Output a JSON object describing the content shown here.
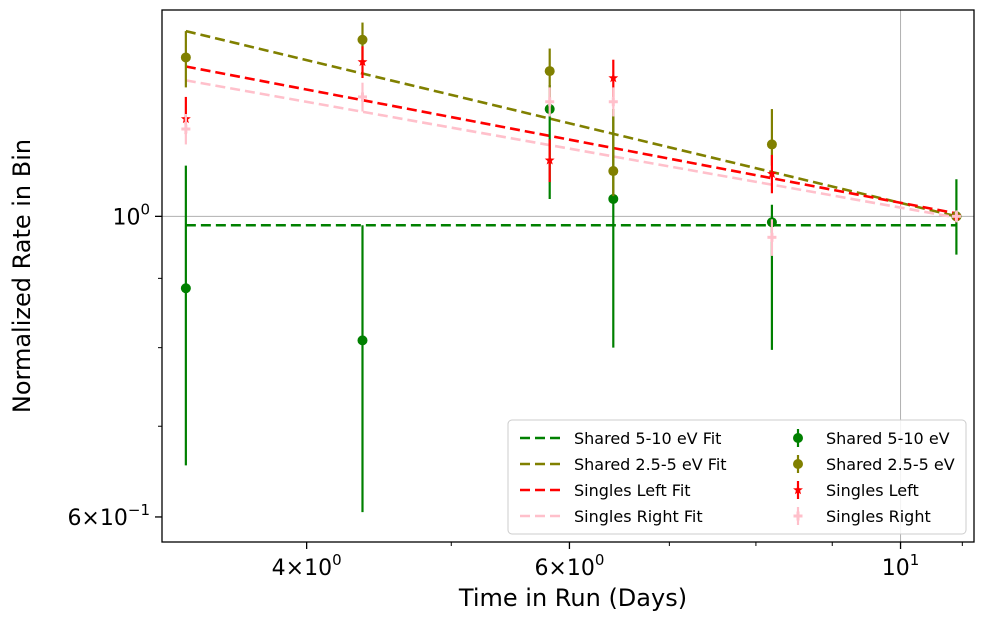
{
  "chart_data": {
    "type": "scatter",
    "title": "",
    "xlabel": "Time in Run (Days)",
    "ylabel": "Normalized Rate in Bin",
    "xscale": "log",
    "yscale": "log",
    "xlim": [
      3.2,
      11.2
    ],
    "ylim": [
      0.575,
      1.42
    ],
    "xticks": [
      {
        "value": 4,
        "base": "4×10",
        "exp": "0"
      },
      {
        "value": 6,
        "base": "6×10",
        "exp": "0"
      },
      {
        "value": 10,
        "base": "10",
        "exp": "1"
      }
    ],
    "yticks": [
      {
        "value": 0.6,
        "base": "6×10",
        "exp": "−1"
      },
      {
        "value": 1.0,
        "base": "10",
        "exp": "0"
      }
    ],
    "grid_lines": {
      "x": 10,
      "y": 1.0
    },
    "legend_position": "lower-right",
    "fits": [
      {
        "name": "Shared 5-10 eV Fit",
        "color": "#008000",
        "x": [
          3.32,
          10.9
        ],
        "y": [
          0.985,
          0.985
        ]
      },
      {
        "name": "Shared 2.5-5 eV Fit",
        "color": "#808000",
        "x": [
          3.32,
          10.9
        ],
        "y": [
          1.37,
          1.0
        ]
      },
      {
        "name": "Singles Left Fit",
        "color": "#ff0000",
        "x": [
          3.32,
          10.9
        ],
        "y": [
          1.29,
          1.005
        ]
      },
      {
        "name": "Singles Right Fit",
        "color": "#ffc0cb",
        "x": [
          3.32,
          10.9
        ],
        "y": [
          1.26,
          0.998
        ]
      }
    ],
    "series": [
      {
        "name": "Shared 5-10 eV",
        "color": "#008000",
        "marker": "circle",
        "points": [
          {
            "x": 3.32,
            "y": 0.885,
            "lo": 0.655,
            "hi": 1.09
          },
          {
            "x": 4.36,
            "y": 0.81,
            "lo": 0.605,
            "hi": 0.985
          },
          {
            "x": 5.82,
            "y": 1.2,
            "lo": 1.03,
            "hi": 1.25
          },
          {
            "x": 6.42,
            "y": 1.03,
            "lo": 0.8,
            "hi": 1.2
          },
          {
            "x": 8.2,
            "y": 0.99,
            "lo": 0.797,
            "hi": 1.02
          },
          {
            "x": 10.9,
            "y": 1.0,
            "lo": 0.937,
            "hi": 1.065
          }
        ]
      },
      {
        "name": "Shared 2.5-5 eV",
        "color": "#808000",
        "marker": "circle",
        "points": [
          {
            "x": 3.32,
            "y": 1.31,
            "lo": 1.245,
            "hi": 1.37
          },
          {
            "x": 4.36,
            "y": 1.35,
            "lo": 1.295,
            "hi": 1.39
          },
          {
            "x": 5.82,
            "y": 1.28,
            "lo": 1.22,
            "hi": 1.33
          },
          {
            "x": 6.42,
            "y": 1.08,
            "lo": 1.035,
            "hi": 1.2
          },
          {
            "x": 8.2,
            "y": 1.13,
            "lo": 1.09,
            "hi": 1.2
          },
          {
            "x": 10.9,
            "y": 1.0,
            "lo": 0.99,
            "hi": 1.01
          }
        ]
      },
      {
        "name": "Singles Left",
        "color": "#ff0000",
        "marker": "star",
        "points": [
          {
            "x": 3.32,
            "y": 1.18,
            "lo": 1.15,
            "hi": 1.225
          },
          {
            "x": 4.36,
            "y": 1.3,
            "lo": 1.265,
            "hi": 1.335
          },
          {
            "x": 5.82,
            "y": 1.1,
            "lo": 1.06,
            "hi": 1.14
          },
          {
            "x": 6.42,
            "y": 1.265,
            "lo": 1.225,
            "hi": 1.305
          },
          {
            "x": 8.2,
            "y": 1.075,
            "lo": 1.04,
            "hi": 1.11
          },
          {
            "x": 10.9,
            "y": 1.0,
            "lo": 0.99,
            "hi": 1.01
          }
        ]
      },
      {
        "name": "Singles Right",
        "color": "#ffc0cb",
        "marker": "plus",
        "points": [
          {
            "x": 3.32,
            "y": 1.16,
            "lo": 1.13,
            "hi": 1.19
          },
          {
            "x": 4.36,
            "y": 1.225,
            "lo": 1.195,
            "hi": 1.255
          },
          {
            "x": 5.82,
            "y": 1.215,
            "lo": 1.185,
            "hi": 1.245
          },
          {
            "x": 6.42,
            "y": 1.215,
            "lo": 1.185,
            "hi": 1.245
          },
          {
            "x": 8.2,
            "y": 0.965,
            "lo": 0.935,
            "hi": 0.995
          },
          {
            "x": 10.9,
            "y": 1.0,
            "lo": 0.99,
            "hi": 1.01
          }
        ]
      }
    ],
    "legend": {
      "left": [
        {
          "label": "Shared 5-10 eV Fit",
          "color": "#008000",
          "kind": "line"
        },
        {
          "label": "Shared 2.5-5 eV Fit",
          "color": "#808000",
          "kind": "line"
        },
        {
          "label": "Singles Left Fit",
          "color": "#ff0000",
          "kind": "line"
        },
        {
          "label": "Singles Right Fit",
          "color": "#ffc0cb",
          "kind": "line"
        }
      ],
      "right": [
        {
          "label": "Shared 5-10 eV",
          "color": "#008000",
          "kind": "circle"
        },
        {
          "label": "Shared 2.5-5 eV",
          "color": "#808000",
          "kind": "circle"
        },
        {
          "label": "Singles Left",
          "color": "#ff0000",
          "kind": "star"
        },
        {
          "label": "Singles Right",
          "color": "#ffc0cb",
          "kind": "plus"
        }
      ]
    }
  }
}
